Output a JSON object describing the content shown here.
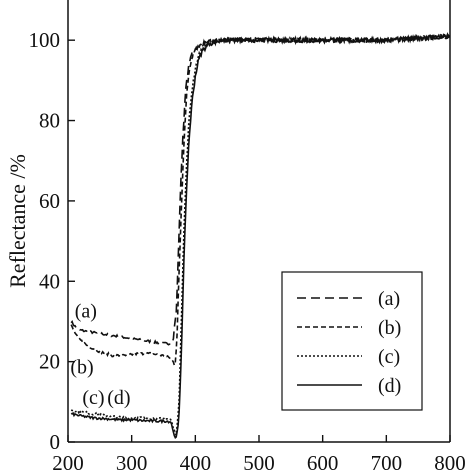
{
  "chart_data": {
    "type": "line",
    "xlabel": "",
    "ylabel": "Reflectance /%",
    "xlim": [
      200,
      800
    ],
    "ylim": [
      0,
      110
    ],
    "xticks": [
      200,
      300,
      400,
      500,
      600,
      700,
      800
    ],
    "yticks": [
      0,
      20,
      40,
      60,
      80,
      100
    ],
    "xtick_labels": [
      "200",
      "300",
      "400",
      "500",
      "600",
      "700",
      "800"
    ],
    "ytick_labels": [
      "0",
      "20",
      "40",
      "60",
      "80",
      "100"
    ],
    "grid": false,
    "legend_position": "bottom-right",
    "series": [
      {
        "name": "(a)",
        "dash": "long-dash",
        "x": [
          205,
          215,
          230,
          250,
          270,
          290,
          310,
          330,
          350,
          360,
          365,
          368,
          370,
          373,
          376,
          380,
          385,
          390,
          395,
          400,
          410,
          420,
          440,
          460,
          500,
          550,
          600,
          650,
          700,
          750,
          800
        ],
        "y": [
          30,
          28,
          27.5,
          27,
          26.5,
          26,
          25.5,
          25,
          24.5,
          24.5,
          25,
          30,
          32,
          45,
          60,
          75,
          88,
          94,
          97,
          98,
          99,
          99.5,
          100,
          100,
          100,
          100,
          100,
          100,
          100,
          100.5,
          101
        ]
      },
      {
        "name": "(b)",
        "dash": "short-dash",
        "x": [
          205,
          215,
          230,
          250,
          270,
          290,
          310,
          330,
          350,
          360,
          365,
          368,
          371,
          374,
          378,
          382,
          386,
          390,
          395,
          400,
          410,
          420,
          440,
          460,
          500,
          550,
          600,
          650,
          700,
          750,
          800
        ],
        "y": [
          29,
          26,
          24,
          22.5,
          21.5,
          21.5,
          22,
          22,
          21.5,
          21,
          20,
          19,
          25,
          40,
          58,
          74,
          86,
          92,
          96,
          98,
          99,
          99.5,
          100,
          100,
          100,
          100,
          100,
          100,
          100,
          100.5,
          101
        ]
      },
      {
        "name": "(c)",
        "dash": "dotted",
        "x": [
          205,
          220,
          240,
          260,
          280,
          300,
          320,
          340,
          355,
          362,
          366,
          370,
          374,
          378,
          382,
          386,
          390,
          395,
          400,
          405,
          410,
          420,
          440,
          460,
          500,
          550,
          600,
          650,
          700,
          750,
          800
        ],
        "y": [
          8,
          7.5,
          7,
          6.5,
          6.2,
          6,
          6,
          5.8,
          5.8,
          5.5,
          3,
          2,
          8,
          30,
          52,
          68,
          80,
          88,
          93,
          96,
          97.5,
          99,
          100,
          100,
          100,
          100,
          100,
          100,
          100,
          100.5,
          101
        ]
      },
      {
        "name": "(d)",
        "dash": "solid",
        "x": [
          205,
          220,
          240,
          260,
          280,
          300,
          320,
          340,
          355,
          362,
          366,
          370,
          374,
          378,
          382,
          386,
          390,
          395,
          400,
          405,
          410,
          420,
          440,
          460,
          500,
          550,
          600,
          650,
          700,
          750,
          800
        ],
        "y": [
          7,
          6.5,
          6,
          5.8,
          5.5,
          5.5,
          5.3,
          5.2,
          5.2,
          5,
          2,
          1,
          5,
          22,
          45,
          62,
          75,
          85,
          91,
          95,
          97,
          99,
          100,
          100,
          100,
          100,
          100,
          100,
          100,
          100.5,
          101
        ]
      }
    ],
    "annotations": [
      {
        "text": "(a)",
        "x": 228,
        "y": 31
      },
      {
        "text": "(b)",
        "x": 222,
        "y": 17
      },
      {
        "text": "(c)",
        "x": 240,
        "y": 9.5
      },
      {
        "text": "(d)",
        "x": 280,
        "y": 9.5
      }
    ]
  }
}
